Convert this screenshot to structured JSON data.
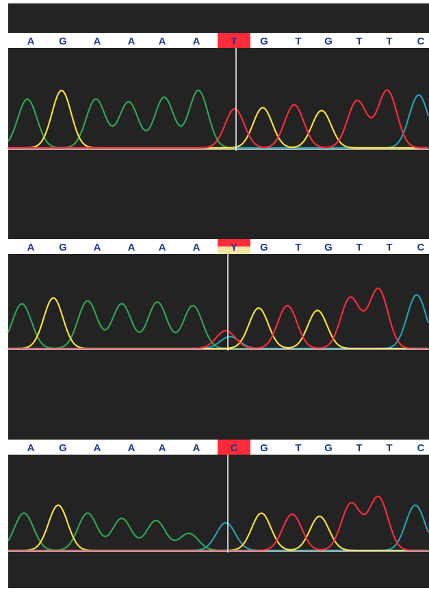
{
  "colors": {
    "background": "#232323",
    "page": "#ffffff",
    "sequence_bar": "#ffffff",
    "base_text": "#1e3a8a",
    "highlight": "#ff2b3a",
    "highlight_secondary": "#f1e6a6",
    "cursor": "#ffffff",
    "baseline": "#d6d6d6",
    "trace_A": "#2fa84f",
    "trace_C": "#22a3b3",
    "trace_G": "#ffe13a",
    "trace_T": "#ff2b3a"
  },
  "panels": [
    {
      "bases": [
        "A",
        "G",
        "A",
        "A",
        "A",
        "A",
        "T",
        "G",
        "T",
        "G",
        "T",
        "T",
        "C"
      ],
      "highlight_index": 6
    },
    {
      "bases": [
        "A",
        "G",
        "A",
        "A",
        "A",
        "A",
        "Y",
        "G",
        "T",
        "G",
        "T",
        "T",
        "C"
      ],
      "highlight_index": 6,
      "highlight_style": "split"
    },
    {
      "bases": [
        "A",
        "G",
        "A",
        "A",
        "A",
        "A",
        "C",
        "G",
        "T",
        "G",
        "T",
        "T",
        "C"
      ],
      "highlight_index": 6
    }
  ]
}
